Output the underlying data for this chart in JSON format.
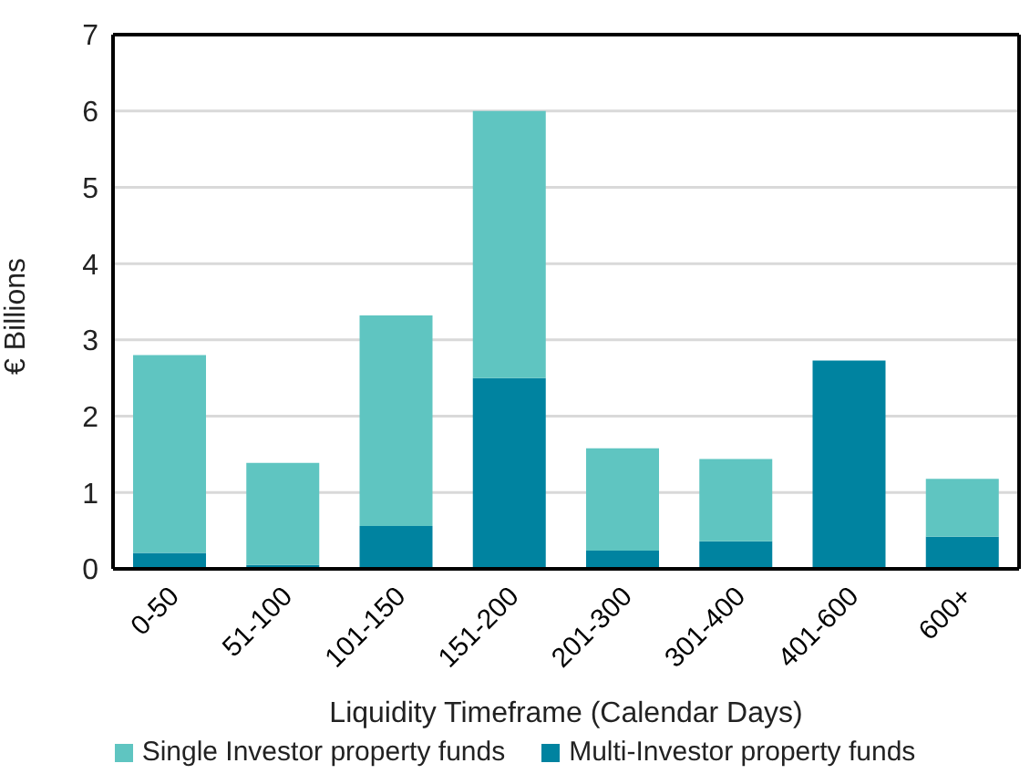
{
  "chart_data": {
    "type": "bar",
    "stacked": true,
    "xlabel": "Liquidity Timeframe (Calendar Days)",
    "ylabel": "€ Billions",
    "categories": [
      "0-50",
      "51-100",
      "101-150",
      "151-200",
      "201-300",
      "301-400",
      "401-600",
      "600+"
    ],
    "series": [
      {
        "name": "Multi-Investor property funds",
        "color": "#0083a0",
        "values": [
          0.21,
          0.05,
          0.56,
          2.5,
          0.24,
          0.36,
          2.73,
          0.42
        ]
      },
      {
        "name": "Single Investor property funds",
        "color": "#5fc5c1",
        "values": [
          2.59,
          1.34,
          2.76,
          3.5,
          1.34,
          1.08,
          0,
          0.76
        ]
      }
    ],
    "ylim": [
      0,
      7
    ],
    "yticks": [
      0,
      1,
      2,
      3,
      4,
      5,
      6,
      7
    ],
    "grid": "y",
    "legend": "bottom"
  }
}
